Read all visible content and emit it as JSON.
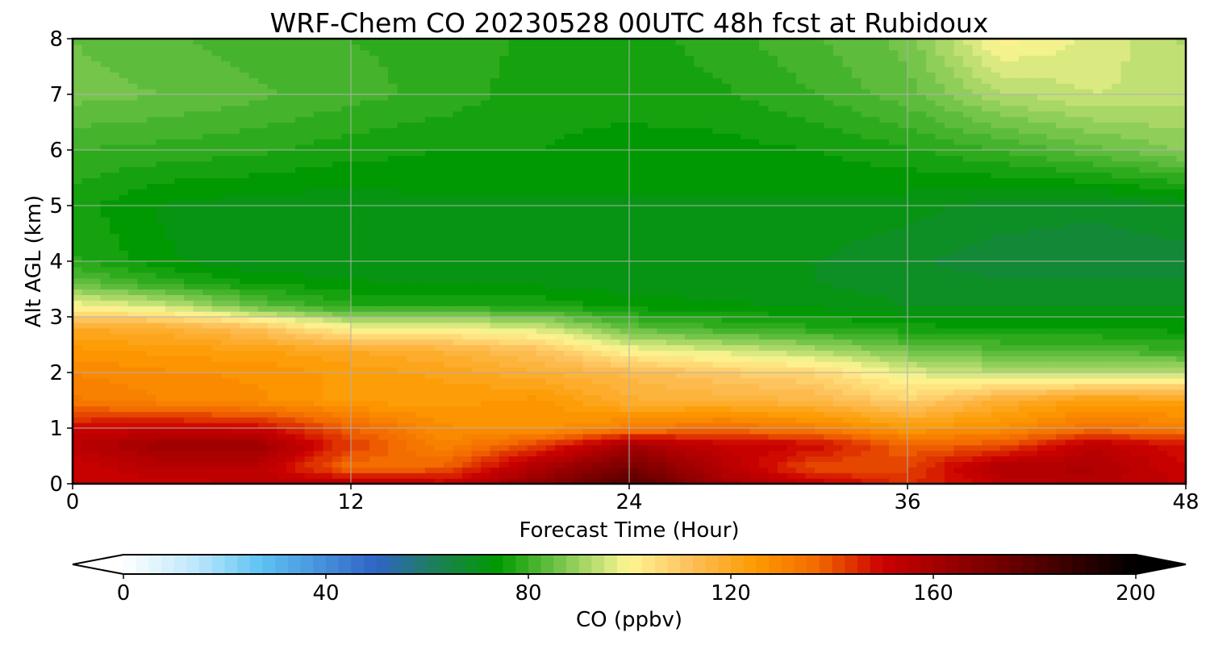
{
  "chart_data": {
    "type": "heatmap",
    "title": "WRF-Chem CO  20230528 00UTC 48h fcst at Rubidoux",
    "xlabel": "Forecast Time (Hour)",
    "ylabel": "Alt AGL (km)",
    "xlim": [
      0,
      48
    ],
    "ylim": [
      0,
      8
    ],
    "xticks": [
      0,
      12,
      24,
      36,
      48
    ],
    "xtick_labels": [
      "0",
      "12",
      "24",
      "36",
      "48"
    ],
    "yticks": [
      0,
      1,
      2,
      3,
      4,
      5,
      6,
      7,
      8
    ],
    "ytick_labels": [
      "0",
      "1",
      "2",
      "3",
      "4",
      "5",
      "6",
      "7",
      "8"
    ],
    "grid": true,
    "x": [
      0,
      4,
      8,
      12,
      16,
      20,
      24,
      28,
      32,
      36,
      40,
      44,
      48
    ],
    "y": [
      0,
      0.3,
      0.7,
      1.0,
      1.5,
      2.0,
      2.4,
      2.8,
      3.2,
      3.6,
      4.0,
      5.0,
      6.0,
      7.0,
      8.0
    ],
    "z": [
      [
        152,
        150,
        154,
        156,
        152,
        165,
        182,
        160,
        153,
        144,
        152,
        156,
        152
      ],
      [
        150,
        156,
        155,
        135,
        138,
        158,
        172,
        156,
        140,
        142,
        158,
        158,
        150
      ],
      [
        155,
        162,
        162,
        143,
        130,
        142,
        160,
        152,
        150,
        137,
        140,
        154,
        148
      ],
      [
        150,
        152,
        150,
        138,
        128,
        126,
        132,
        136,
        132,
        125,
        128,
        135,
        132
      ],
      [
        133,
        130,
        128,
        124,
        124,
        126,
        118,
        117,
        115,
        108,
        118,
        124,
        122
      ],
      [
        130,
        128,
        127,
        124,
        122,
        118,
        114,
        110,
        107,
        97,
        93,
        92,
        93
      ],
      [
        126,
        124,
        123,
        120,
        117,
        112,
        100,
        96,
        92,
        86,
        83,
        82,
        80
      ],
      [
        120,
        118,
        112,
        100,
        99,
        96,
        84,
        80,
        78,
        76,
        75,
        75,
        74
      ],
      [
        100,
        95,
        84,
        78,
        78,
        77,
        74,
        73,
        72,
        70,
        70,
        70,
        70
      ],
      [
        85,
        79,
        75,
        73,
        72,
        72,
        71,
        71,
        70,
        69,
        68,
        68,
        68
      ],
      [
        78,
        73,
        70,
        70,
        71,
        71,
        70,
        70,
        70,
        68,
        66,
        66,
        66
      ],
      [
        76,
        72,
        71,
        71,
        72,
        72,
        72,
        72,
        72,
        71,
        69,
        68,
        70
      ],
      [
        80,
        79,
        78,
        76,
        75,
        75,
        74,
        74,
        75,
        77,
        80,
        84,
        88
      ],
      [
        86,
        85,
        83,
        81,
        79,
        76,
        76,
        77,
        80,
        84,
        92,
        95,
        94
      ],
      [
        85,
        83,
        81,
        80,
        79,
        77,
        76,
        79,
        82,
        86,
        101,
        97,
        92
      ]
    ],
    "colorbar": {
      "label": "CO  (ppbv)",
      "min": 0,
      "max": 200,
      "step": 2.5,
      "extend": "both",
      "ticks": [
        0,
        40,
        80,
        120,
        160,
        200
      ],
      "tick_labels": [
        "0",
        "40",
        "80",
        "120",
        "160",
        "200"
      ],
      "color_stops": [
        {
          "value": 0,
          "color": "#ffffff"
        },
        {
          "value": 15,
          "color": "#b8e6fb"
        },
        {
          "value": 27,
          "color": "#5fc3f3"
        },
        {
          "value": 50,
          "color": "#2f64c5"
        },
        {
          "value": 62,
          "color": "#1d8055"
        },
        {
          "value": 74,
          "color": "#009a00"
        },
        {
          "value": 86,
          "color": "#74c44a"
        },
        {
          "value": 100,
          "color": "#fff694"
        },
        {
          "value": 112,
          "color": "#fdc05a"
        },
        {
          "value": 125,
          "color": "#fd9a00"
        },
        {
          "value": 137,
          "color": "#f36a00"
        },
        {
          "value": 150,
          "color": "#cc0000"
        },
        {
          "value": 175,
          "color": "#6b0000"
        },
        {
          "value": 200,
          "color": "#000000"
        }
      ]
    }
  }
}
